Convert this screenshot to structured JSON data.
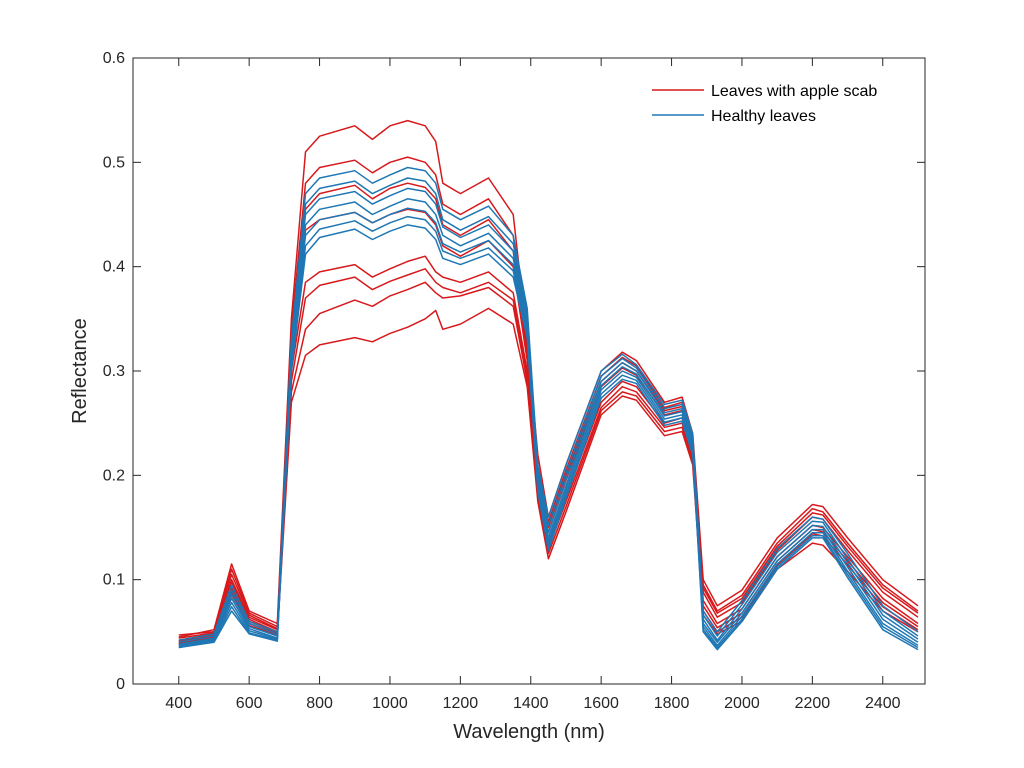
{
  "chart_data": {
    "type": "line",
    "title": "",
    "xlabel": "Wavelength (nm)",
    "ylabel": "Reflectance",
    "xlim": [
      270,
      2520
    ],
    "ylim": [
      0,
      0.6
    ],
    "xticks": [
      400,
      600,
      800,
      1000,
      1200,
      1400,
      1600,
      1800,
      2000,
      2200,
      2400
    ],
    "yticks": [
      0,
      0.1,
      0.2,
      0.3,
      0.4,
      0.5,
      0.6
    ],
    "ytick_labels": [
      "0",
      "0.1",
      "0.2",
      "0.3",
      "0.4",
      "0.5",
      "0.6"
    ],
    "grid": false,
    "legend_position": "top-right",
    "x": [
      400,
      500,
      550,
      600,
      680,
      720,
      760,
      800,
      900,
      950,
      1000,
      1050,
      1100,
      1130,
      1150,
      1200,
      1280,
      1350,
      1390,
      1420,
      1450,
      1500,
      1600,
      1660,
      1700,
      1780,
      1830,
      1860,
      1890,
      1930,
      2000,
      2100,
      2200,
      2230,
      2300,
      2400,
      2500
    ],
    "shape_notes": "each series is the reflectance spectrum of one leaf sample; the series below share the common wavelength grid in x",
    "series": [
      {
        "name": "Leaves with apple scab",
        "color": "#d7191c",
        "samples": [
          [
            0.045,
            0.052,
            0.115,
            0.07,
            0.058,
            0.35,
            0.51,
            0.525,
            0.535,
            0.522,
            0.535,
            0.54,
            0.535,
            0.52,
            0.48,
            0.47,
            0.485,
            0.45,
            0.33,
            0.22,
            0.16,
            0.21,
            0.3,
            0.318,
            0.31,
            0.27,
            0.275,
            0.24,
            0.1,
            0.075,
            0.09,
            0.14,
            0.172,
            0.17,
            0.14,
            0.1,
            0.075
          ],
          [
            0.047,
            0.05,
            0.11,
            0.068,
            0.055,
            0.34,
            0.48,
            0.495,
            0.502,
            0.49,
            0.5,
            0.505,
            0.5,
            0.488,
            0.46,
            0.45,
            0.465,
            0.43,
            0.32,
            0.21,
            0.155,
            0.205,
            0.295,
            0.313,
            0.305,
            0.265,
            0.27,
            0.235,
            0.095,
            0.07,
            0.085,
            0.135,
            0.168,
            0.165,
            0.135,
            0.095,
            0.07
          ],
          [
            0.044,
            0.049,
            0.105,
            0.066,
            0.053,
            0.33,
            0.455,
            0.47,
            0.478,
            0.465,
            0.475,
            0.48,
            0.476,
            0.465,
            0.44,
            0.43,
            0.445,
            0.415,
            0.315,
            0.205,
            0.15,
            0.2,
            0.29,
            0.308,
            0.3,
            0.262,
            0.266,
            0.232,
            0.092,
            0.068,
            0.082,
            0.132,
            0.164,
            0.162,
            0.132,
            0.092,
            0.068
          ],
          [
            0.042,
            0.048,
            0.1,
            0.064,
            0.052,
            0.32,
            0.435,
            0.445,
            0.452,
            0.442,
            0.45,
            0.455,
            0.452,
            0.44,
            0.42,
            0.41,
            0.425,
            0.4,
            0.31,
            0.2,
            0.145,
            0.195,
            0.285,
            0.303,
            0.296,
            0.258,
            0.262,
            0.228,
            0.088,
            0.064,
            0.078,
            0.128,
            0.16,
            0.158,
            0.128,
            0.088,
            0.064
          ],
          [
            0.041,
            0.047,
            0.098,
            0.062,
            0.05,
            0.3,
            0.385,
            0.395,
            0.402,
            0.39,
            0.398,
            0.405,
            0.41,
            0.395,
            0.39,
            0.385,
            0.395,
            0.375,
            0.3,
            0.19,
            0.135,
            0.18,
            0.27,
            0.29,
            0.285,
            0.25,
            0.255,
            0.222,
            0.08,
            0.058,
            0.072,
            0.122,
            0.152,
            0.15,
            0.122,
            0.082,
            0.058
          ],
          [
            0.04,
            0.046,
            0.092,
            0.06,
            0.049,
            0.29,
            0.37,
            0.382,
            0.39,
            0.378,
            0.386,
            0.392,
            0.398,
            0.385,
            0.38,
            0.375,
            0.385,
            0.368,
            0.295,
            0.185,
            0.13,
            0.175,
            0.265,
            0.285,
            0.28,
            0.246,
            0.25,
            0.218,
            0.075,
            0.054,
            0.068,
            0.118,
            0.148,
            0.146,
            0.118,
            0.078,
            0.055
          ],
          [
            0.039,
            0.045,
            0.088,
            0.058,
            0.048,
            0.28,
            0.34,
            0.355,
            0.368,
            0.362,
            0.372,
            0.378,
            0.385,
            0.375,
            0.37,
            0.372,
            0.38,
            0.362,
            0.29,
            0.18,
            0.125,
            0.17,
            0.262,
            0.28,
            0.276,
            0.242,
            0.246,
            0.214,
            0.07,
            0.05,
            0.064,
            0.114,
            0.144,
            0.142,
            0.114,
            0.074,
            0.052
          ],
          [
            0.038,
            0.044,
            0.085,
            0.056,
            0.047,
            0.27,
            0.315,
            0.325,
            0.332,
            0.328,
            0.336,
            0.342,
            0.35,
            0.358,
            0.34,
            0.345,
            0.36,
            0.345,
            0.285,
            0.175,
            0.12,
            0.165,
            0.258,
            0.276,
            0.272,
            0.238,
            0.242,
            0.21,
            0.066,
            0.048,
            0.06,
            0.11,
            0.135,
            0.133,
            0.108,
            0.07,
            0.05
          ]
        ]
      },
      {
        "name": "Healthy leaves",
        "color": "#1f77b4",
        "samples": [
          [
            0.042,
            0.048,
            0.095,
            0.06,
            0.05,
            0.33,
            0.47,
            0.485,
            0.492,
            0.48,
            0.488,
            0.495,
            0.492,
            0.48,
            0.455,
            0.445,
            0.458,
            0.43,
            0.36,
            0.21,
            0.16,
            0.21,
            0.3,
            0.316,
            0.306,
            0.268,
            0.272,
            0.24,
            0.07,
            0.05,
            0.08,
            0.13,
            0.16,
            0.158,
            0.125,
            0.075,
            0.05
          ],
          [
            0.04,
            0.046,
            0.09,
            0.058,
            0.048,
            0.325,
            0.46,
            0.475,
            0.482,
            0.47,
            0.478,
            0.485,
            0.482,
            0.47,
            0.445,
            0.435,
            0.448,
            0.422,
            0.355,
            0.205,
            0.152,
            0.202,
            0.295,
            0.312,
            0.303,
            0.264,
            0.268,
            0.236,
            0.066,
            0.046,
            0.076,
            0.126,
            0.156,
            0.155,
            0.12,
            0.07,
            0.046
          ],
          [
            0.038,
            0.044,
            0.086,
            0.055,
            0.046,
            0.32,
            0.45,
            0.465,
            0.472,
            0.46,
            0.468,
            0.475,
            0.472,
            0.46,
            0.438,
            0.428,
            0.44,
            0.415,
            0.35,
            0.2,
            0.145,
            0.196,
            0.29,
            0.308,
            0.3,
            0.26,
            0.264,
            0.232,
            0.062,
            0.042,
            0.072,
            0.122,
            0.152,
            0.151,
            0.116,
            0.066,
            0.043
          ],
          [
            0.037,
            0.043,
            0.082,
            0.053,
            0.044,
            0.315,
            0.44,
            0.455,
            0.462,
            0.45,
            0.458,
            0.465,
            0.462,
            0.45,
            0.43,
            0.42,
            0.432,
            0.408,
            0.345,
            0.196,
            0.14,
            0.19,
            0.286,
            0.304,
            0.297,
            0.257,
            0.261,
            0.229,
            0.058,
            0.04,
            0.068,
            0.118,
            0.148,
            0.148,
            0.112,
            0.062,
            0.04
          ],
          [
            0.036,
            0.042,
            0.078,
            0.051,
            0.043,
            0.31,
            0.43,
            0.445,
            0.452,
            0.442,
            0.45,
            0.456,
            0.453,
            0.442,
            0.422,
            0.414,
            0.425,
            0.402,
            0.34,
            0.192,
            0.136,
            0.186,
            0.282,
            0.3,
            0.294,
            0.254,
            0.258,
            0.226,
            0.055,
            0.037,
            0.065,
            0.115,
            0.145,
            0.145,
            0.108,
            0.058,
            0.037
          ],
          [
            0.035,
            0.041,
            0.074,
            0.049,
            0.042,
            0.305,
            0.42,
            0.436,
            0.444,
            0.434,
            0.442,
            0.448,
            0.445,
            0.434,
            0.415,
            0.408,
            0.418,
            0.396,
            0.336,
            0.188,
            0.132,
            0.182,
            0.278,
            0.296,
            0.291,
            0.251,
            0.255,
            0.223,
            0.052,
            0.035,
            0.062,
            0.112,
            0.142,
            0.142,
            0.105,
            0.055,
            0.035
          ],
          [
            0.035,
            0.04,
            0.07,
            0.048,
            0.041,
            0.3,
            0.412,
            0.428,
            0.436,
            0.426,
            0.434,
            0.44,
            0.437,
            0.426,
            0.408,
            0.402,
            0.412,
            0.39,
            0.332,
            0.185,
            0.128,
            0.178,
            0.274,
            0.292,
            0.288,
            0.248,
            0.252,
            0.22,
            0.05,
            0.033,
            0.06,
            0.11,
            0.14,
            0.14,
            0.102,
            0.052,
            0.033
          ]
        ]
      }
    ]
  }
}
